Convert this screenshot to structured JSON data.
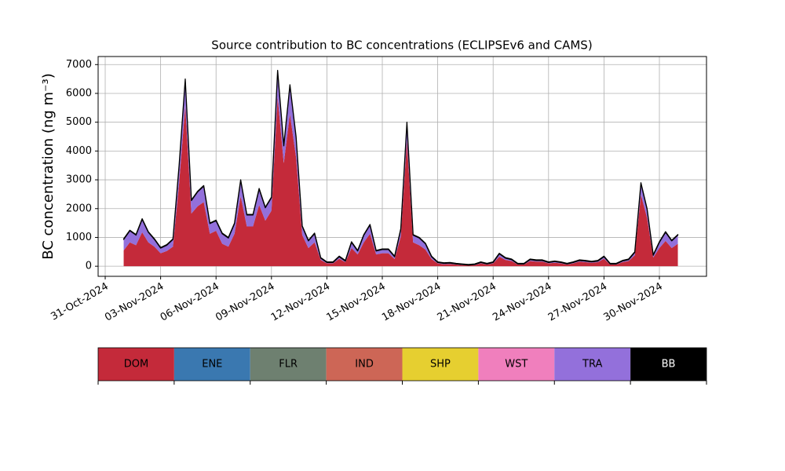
{
  "chart_data": {
    "type": "stacked_area",
    "title": "Source contribution to BC concentrations (ECLIPSEv6 and CAMS)",
    "y_label": "BC concentration (ng m⁻³)",
    "x": [
      "2024-11-01 00:00",
      "2024-11-01 08:00",
      "2024-11-01 16:00",
      "2024-11-02 00:00",
      "2024-11-02 08:00",
      "2024-11-02 16:00",
      "2024-11-03 00:00",
      "2024-11-03 08:00",
      "2024-11-03 16:00",
      "2024-11-04 00:00",
      "2024-11-04 08:00",
      "2024-11-04 16:00",
      "2024-11-05 00:00",
      "2024-11-05 08:00",
      "2024-11-05 16:00",
      "2024-11-06 00:00",
      "2024-11-06 08:00",
      "2024-11-06 16:00",
      "2024-11-07 00:00",
      "2024-11-07 08:00",
      "2024-11-07 16:00",
      "2024-11-08 00:00",
      "2024-11-08 08:00",
      "2024-11-08 16:00",
      "2024-11-09 00:00",
      "2024-11-09 08:00",
      "2024-11-09 16:00",
      "2024-11-10 00:00",
      "2024-11-10 08:00",
      "2024-11-10 16:00",
      "2024-11-11 00:00",
      "2024-11-11 08:00",
      "2024-11-11 16:00",
      "2024-11-12 00:00",
      "2024-11-12 08:00",
      "2024-11-12 16:00",
      "2024-11-13 00:00",
      "2024-11-13 08:00",
      "2024-11-13 16:00",
      "2024-11-14 00:00",
      "2024-11-14 08:00",
      "2024-11-14 16:00",
      "2024-11-15 00:00",
      "2024-11-15 08:00",
      "2024-11-15 16:00",
      "2024-11-16 00:00",
      "2024-11-16 08:00",
      "2024-11-16 16:00",
      "2024-11-17 00:00",
      "2024-11-17 08:00",
      "2024-11-17 16:00",
      "2024-11-18 00:00",
      "2024-11-18 08:00",
      "2024-11-18 16:00",
      "2024-11-19 00:00",
      "2024-11-19 08:00",
      "2024-11-19 16:00",
      "2024-11-20 00:00",
      "2024-11-20 08:00",
      "2024-11-20 16:00",
      "2024-11-21 00:00",
      "2024-11-21 08:00",
      "2024-11-21 16:00",
      "2024-11-22 00:00",
      "2024-11-22 08:00",
      "2024-11-22 16:00",
      "2024-11-23 00:00",
      "2024-11-23 08:00",
      "2024-11-23 16:00",
      "2024-11-24 00:00",
      "2024-11-24 08:00",
      "2024-11-24 16:00",
      "2024-11-25 00:00",
      "2024-11-25 08:00",
      "2024-11-25 16:00",
      "2024-11-26 00:00",
      "2024-11-26 08:00",
      "2024-11-26 16:00",
      "2024-11-27 00:00",
      "2024-11-27 08:00",
      "2024-11-27 16:00",
      "2024-11-28 00:00",
      "2024-11-28 08:00",
      "2024-11-28 16:00",
      "2024-11-29 00:00",
      "2024-11-29 08:00",
      "2024-11-29 16:00",
      "2024-11-30 00:00",
      "2024-11-30 08:00",
      "2024-11-30 16:00",
      "2024-12-01 00:00"
    ],
    "series": [
      {
        "name": "DOM",
        "color": "#c42a3a",
        "values": [
          550,
          830,
          730,
          1180,
          830,
          680,
          450,
          530,
          680,
          2880,
          5580,
          1830,
          2080,
          2230,
          1130,
          1230,
          780,
          680,
          1130,
          2430,
          1380,
          1380,
          2130,
          1580,
          1930,
          5880,
          3580,
          5280,
          3780,
          1080,
          630,
          830,
          220,
          100,
          100,
          260,
          140,
          630,
          410,
          830,
          1130,
          410,
          450,
          450,
          250,
          1030,
          4380,
          830,
          730,
          580,
          250,
          100,
          70,
          80,
          60,
          40,
          30,
          40,
          100,
          60,
          100,
          330,
          220,
          180,
          60,
          60,
          180,
          160,
          160,
          100,
          120,
          100,
          60,
          100,
          160,
          140,
          120,
          140,
          260,
          60,
          60,
          140,
          180,
          380,
          2480,
          1680,
          300,
          630,
          880,
          630,
          780
        ]
      },
      {
        "name": "ENE",
        "color": "#3a78b0",
        "values": [
          0,
          0,
          0,
          0,
          0,
          0,
          0,
          0,
          0,
          0,
          0,
          0,
          0,
          0,
          0,
          0,
          0,
          0,
          0,
          0,
          0,
          0,
          0,
          0,
          0,
          0,
          0,
          0,
          0,
          0,
          0,
          0,
          0,
          0,
          0,
          0,
          0,
          0,
          0,
          0,
          0,
          0,
          0,
          0,
          0,
          0,
          0,
          0,
          0,
          0,
          0,
          0,
          0,
          0,
          0,
          0,
          0,
          0,
          0,
          0,
          0,
          0,
          0,
          0,
          0,
          0,
          0,
          0,
          0,
          0,
          0,
          0,
          0,
          0,
          0,
          0,
          0,
          0,
          0,
          0,
          0,
          0,
          0,
          0,
          0,
          0,
          0,
          0,
          0,
          0,
          0
        ]
      },
      {
        "name": "FLR",
        "color": "#6e8070",
        "values": [
          0,
          0,
          0,
          0,
          0,
          0,
          0,
          0,
          0,
          0,
          0,
          0,
          0,
          0,
          0,
          0,
          0,
          0,
          0,
          0,
          0,
          0,
          0,
          0,
          0,
          0,
          0,
          0,
          0,
          0,
          0,
          0,
          0,
          0,
          0,
          0,
          0,
          0,
          0,
          0,
          0,
          0,
          0,
          0,
          0,
          0,
          0,
          0,
          0,
          0,
          0,
          0,
          0,
          0,
          0,
          0,
          0,
          0,
          0,
          0,
          0,
          0,
          0,
          0,
          0,
          0,
          0,
          0,
          0,
          0,
          0,
          0,
          0,
          0,
          0,
          0,
          0,
          0,
          0,
          0,
          0,
          0,
          0,
          0,
          0,
          0,
          0,
          0,
          0,
          0,
          0
        ]
      },
      {
        "name": "IND",
        "color": "#cd6656",
        "values": [
          0,
          0,
          0,
          0,
          0,
          0,
          0,
          0,
          0,
          0,
          0,
          0,
          0,
          0,
          0,
          0,
          0,
          0,
          0,
          0,
          0,
          0,
          0,
          0,
          0,
          0,
          0,
          0,
          0,
          0,
          0,
          0,
          0,
          0,
          0,
          0,
          0,
          0,
          0,
          0,
          0,
          0,
          0,
          0,
          0,
          0,
          0,
          0,
          0,
          0,
          0,
          0,
          0,
          0,
          0,
          0,
          0,
          0,
          0,
          0,
          0,
          0,
          0,
          0,
          0,
          0,
          0,
          0,
          0,
          0,
          0,
          0,
          0,
          0,
          0,
          0,
          0,
          0,
          0,
          0,
          0,
          0,
          0,
          0,
          0,
          0,
          0,
          0,
          0,
          0,
          0
        ]
      },
      {
        "name": "SHP",
        "color": "#e6cf30",
        "values": [
          0,
          0,
          0,
          0,
          0,
          0,
          0,
          0,
          0,
          0,
          0,
          0,
          0,
          0,
          0,
          0,
          0,
          0,
          0,
          0,
          0,
          0,
          0,
          0,
          0,
          0,
          0,
          0,
          0,
          0,
          0,
          0,
          0,
          0,
          0,
          0,
          0,
          0,
          0,
          0,
          0,
          0,
          0,
          0,
          0,
          0,
          0,
          0,
          0,
          0,
          0,
          0,
          0,
          0,
          0,
          0,
          0,
          0,
          0,
          0,
          0,
          0,
          0,
          0,
          0,
          0,
          0,
          0,
          0,
          0,
          0,
          0,
          0,
          0,
          0,
          0,
          0,
          0,
          0,
          0,
          0,
          0,
          0,
          0,
          0,
          0,
          0,
          0,
          0,
          0,
          0
        ]
      },
      {
        "name": "WST",
        "color": "#f07fbd",
        "values": [
          0,
          0,
          0,
          0,
          0,
          0,
          0,
          0,
          0,
          0,
          0,
          0,
          0,
          0,
          0,
          0,
          0,
          0,
          0,
          0,
          0,
          0,
          0,
          0,
          0,
          0,
          0,
          0,
          0,
          0,
          0,
          0,
          0,
          0,
          0,
          0,
          0,
          0,
          0,
          0,
          0,
          0,
          0,
          0,
          0,
          0,
          0,
          0,
          0,
          0,
          0,
          0,
          0,
          0,
          0,
          0,
          0,
          0,
          0,
          0,
          0,
          0,
          0,
          0,
          0,
          0,
          0,
          0,
          0,
          0,
          0,
          0,
          0,
          0,
          0,
          0,
          0,
          0,
          0,
          0,
          0,
          0,
          0,
          0,
          0,
          0,
          0,
          0,
          0,
          0,
          0
        ]
      },
      {
        "name": "TRA",
        "color": "#9370db",
        "values": [
          380,
          400,
          350,
          450,
          350,
          250,
          180,
          200,
          250,
          600,
          900,
          450,
          500,
          550,
          350,
          350,
          350,
          300,
          350,
          550,
          400,
          400,
          550,
          450,
          450,
          900,
          600,
          1000,
          700,
          300,
          250,
          300,
          60,
          30,
          30,
          70,
          40,
          200,
          120,
          250,
          300,
          120,
          130,
          130,
          80,
          250,
          600,
          250,
          250,
          200,
          80,
          30,
          30,
          30,
          20,
          20,
          10,
          20,
          30,
          20,
          30,
          100,
          60,
          50,
          20,
          20,
          50,
          40,
          40,
          30,
          40,
          30,
          20,
          30,
          40,
          40,
          30,
          40,
          70,
          20,
          20,
          40,
          50,
          100,
          400,
          300,
          80,
          200,
          300,
          250,
          300
        ]
      },
      {
        "name": "BB",
        "color": "#000000",
        "values": [
          20,
          20,
          20,
          20,
          20,
          20,
          20,
          20,
          20,
          20,
          20,
          20,
          20,
          20,
          20,
          20,
          20,
          20,
          20,
          20,
          20,
          20,
          20,
          20,
          20,
          20,
          20,
          20,
          20,
          20,
          20,
          20,
          20,
          20,
          20,
          20,
          20,
          20,
          20,
          20,
          20,
          20,
          20,
          20,
          20,
          20,
          20,
          20,
          20,
          20,
          20,
          20,
          20,
          20,
          20,
          20,
          20,
          20,
          20,
          20,
          20,
          20,
          20,
          20,
          20,
          20,
          20,
          20,
          20,
          20,
          20,
          20,
          20,
          20,
          20,
          20,
          20,
          20,
          20,
          20,
          20,
          20,
          20,
          20,
          20,
          20,
          20,
          20,
          20,
          20,
          20
        ]
      }
    ],
    "xlim": [
      "2024-10-30 14:48",
      "2024-12-02 13:12"
    ],
    "xticks": [
      {
        "value": "2024-10-31",
        "label": "31-Oct-2024"
      },
      {
        "value": "2024-11-03",
        "label": "03-Nov-2024"
      },
      {
        "value": "2024-11-06",
        "label": "06-Nov-2024"
      },
      {
        "value": "2024-11-09",
        "label": "09-Nov-2024"
      },
      {
        "value": "2024-11-12",
        "label": "12-Nov-2024"
      },
      {
        "value": "2024-11-15",
        "label": "15-Nov-2024"
      },
      {
        "value": "2024-11-18",
        "label": "18-Nov-2024"
      },
      {
        "value": "2024-11-21",
        "label": "21-Nov-2024"
      },
      {
        "value": "2024-11-24",
        "label": "24-Nov-2024"
      },
      {
        "value": "2024-11-27",
        "label": "27-Nov-2024"
      },
      {
        "value": "2024-11-30",
        "label": "30-Nov-2024"
      }
    ],
    "ylim": [
      -350,
      7280
    ],
    "yticks": [
      0,
      1000,
      2000,
      3000,
      4000,
      5000,
      6000,
      7000
    ],
    "grid": true,
    "legend": "below"
  }
}
